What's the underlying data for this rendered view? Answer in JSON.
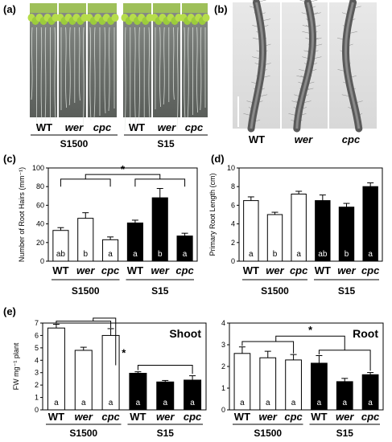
{
  "panels": {
    "a": {
      "label": "(a)",
      "left_genotypes": [
        "WT",
        "wer",
        "cpc"
      ],
      "right_genotypes": [
        "WT",
        "wer",
        "cpc"
      ],
      "left_group": "S1500",
      "right_group": "S15"
    },
    "b": {
      "label": "(b)",
      "genotypes": [
        "WT",
        "wer",
        "cpc"
      ]
    }
  },
  "chart_data": [
    {
      "id": "c",
      "label": "(c)",
      "type": "bar",
      "ylabel": "Number of Root Hairs (mm⁻¹)",
      "ylim": [
        0,
        100
      ],
      "yticks": [
        0,
        20,
        40,
        60,
        80,
        100
      ],
      "groups": [
        "S1500",
        "S15"
      ],
      "categories": [
        "WT",
        "wer",
        "cpc",
        "WT",
        "wer",
        "cpc"
      ],
      "values": [
        33,
        46,
        23,
        41,
        68,
        27
      ],
      "errors": [
        3,
        6,
        3,
        3,
        10,
        3
      ],
      "letters": [
        "ab",
        "b",
        "a",
        "a",
        "b",
        "a"
      ],
      "fills": [
        "#ffffff",
        "#ffffff",
        "#ffffff",
        "#000000",
        "#000000",
        "#000000"
      ],
      "annotation": "*"
    },
    {
      "id": "d",
      "label": "(d)",
      "type": "bar",
      "ylabel": "Primary Root Length (cm)",
      "ylim": [
        0,
        10
      ],
      "yticks": [
        0,
        2,
        4,
        6,
        8,
        10
      ],
      "groups": [
        "S1500",
        "S15"
      ],
      "categories": [
        "WT",
        "wer",
        "cpc",
        "WT",
        "wer",
        "cpc"
      ],
      "values": [
        6.5,
        5.0,
        7.2,
        6.5,
        5.8,
        8.0
      ],
      "errors": [
        0.4,
        0.25,
        0.3,
        0.6,
        0.4,
        0.4
      ],
      "letters": [
        "a",
        "b",
        "a",
        "ab",
        "b",
        "a"
      ],
      "fills": [
        "#ffffff",
        "#ffffff",
        "#ffffff",
        "#000000",
        "#000000",
        "#000000"
      ]
    },
    {
      "id": "e1",
      "label": "(e)",
      "title": "Shoot",
      "type": "bar",
      "ylabel": "FW mg⁻¹ plant",
      "ylim": [
        0,
        7
      ],
      "yticks": [
        0,
        1,
        2,
        3,
        4,
        5,
        6,
        7
      ],
      "groups": [
        "S1500",
        "S15"
      ],
      "categories": [
        "WT",
        "wer",
        "cpc",
        "WT",
        "wer",
        "cpc"
      ],
      "values": [
        6.6,
        4.8,
        6.0,
        2.95,
        2.25,
        2.4
      ],
      "errors": [
        0.3,
        0.25,
        0.55,
        0.12,
        0.12,
        0.35
      ],
      "letters": [
        "a",
        "a",
        "a",
        "a",
        "a",
        "a"
      ],
      "fills": [
        "#ffffff",
        "#ffffff",
        "#ffffff",
        "#000000",
        "#000000",
        "#000000"
      ],
      "annotation": "*"
    },
    {
      "id": "e2",
      "title": "Root",
      "type": "bar",
      "ylabel": "",
      "ylim": [
        0,
        4
      ],
      "yticks": [
        0,
        1,
        2,
        3,
        4
      ],
      "groups": [
        "S1500",
        "S15"
      ],
      "categories": [
        "WT",
        "wer",
        "cpc",
        "WT",
        "wer",
        "cpc"
      ],
      "values": [
        2.6,
        2.4,
        2.3,
        2.15,
        1.3,
        1.62
      ],
      "errors": [
        0.3,
        0.3,
        0.25,
        0.35,
        0.15,
        0.1
      ],
      "letters": [
        "a",
        "a",
        "a",
        "a",
        "a",
        "a"
      ],
      "fills": [
        "#ffffff",
        "#ffffff",
        "#ffffff",
        "#000000",
        "#000000",
        "#000000"
      ],
      "annotation": "*"
    }
  ]
}
